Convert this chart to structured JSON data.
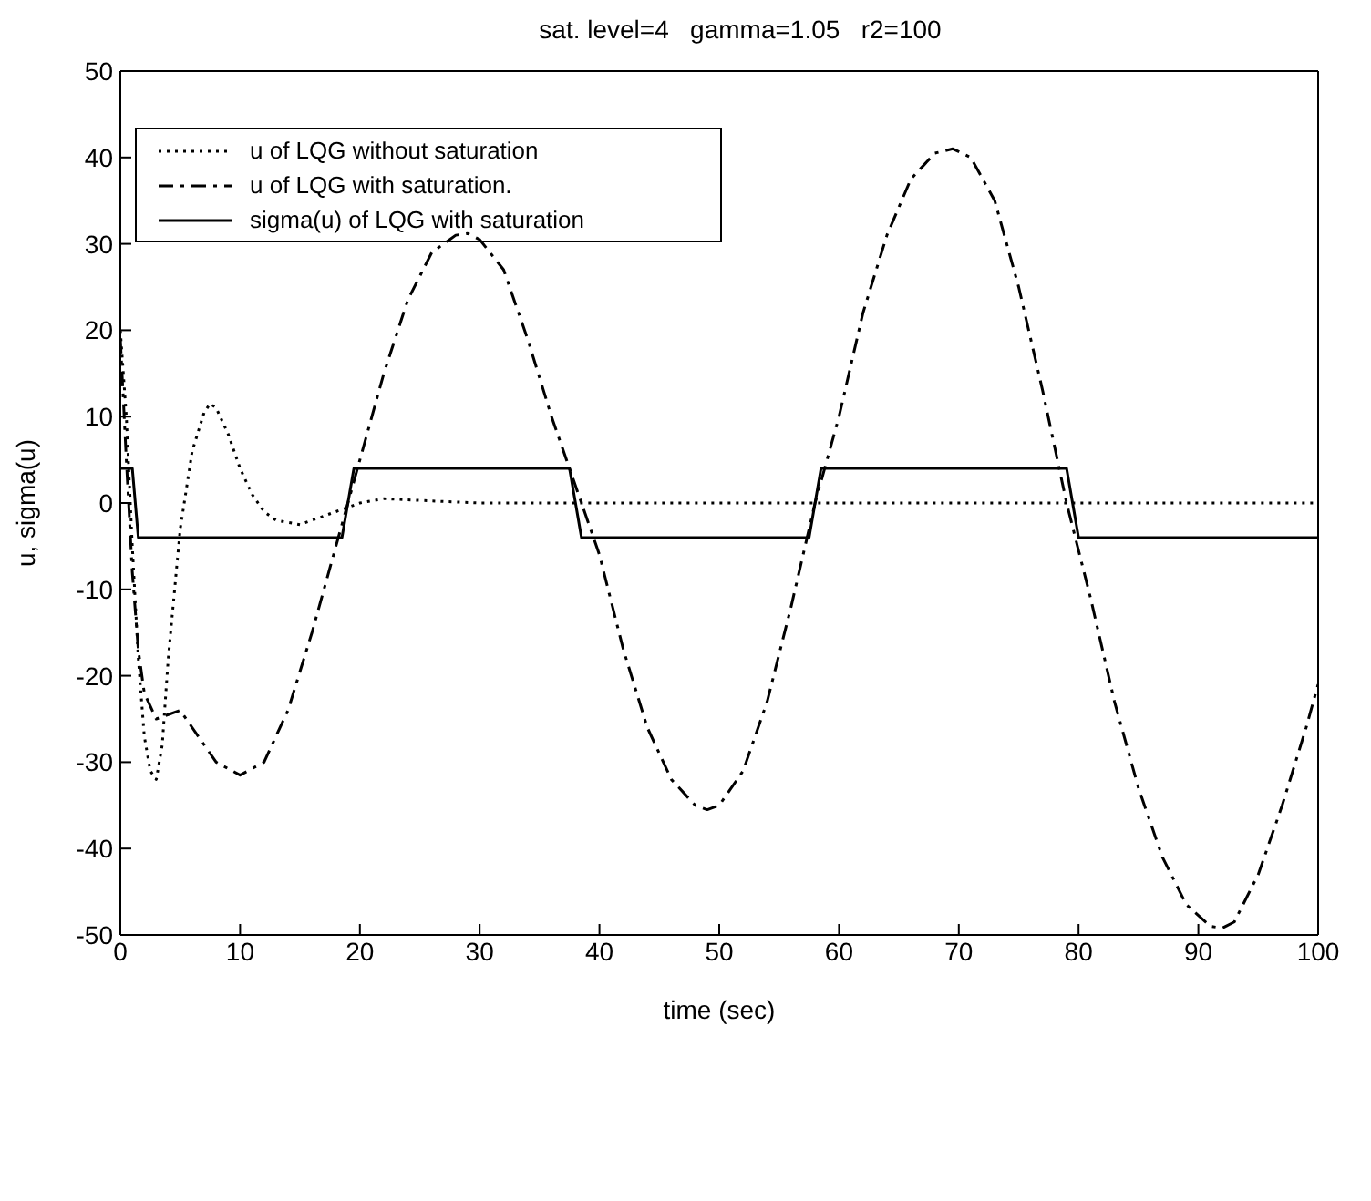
{
  "chart_data": {
    "type": "line",
    "title": "sat. level=4   gamma=1.05   r2=100",
    "xlabel": "time (sec)",
    "ylabel": "u, sigma(u)",
    "xlim": [
      0,
      100
    ],
    "xticks": [
      0,
      10,
      20,
      30,
      40,
      50,
      60,
      70,
      80,
      90,
      100
    ],
    "ylim": [
      -50,
      50
    ],
    "yticks": [
      -50,
      -40,
      -30,
      -20,
      -10,
      0,
      10,
      20,
      30,
      40,
      50
    ],
    "legend": "top left",
    "marker": "none",
    "series": [
      {
        "name": "u of LQG without saturation",
        "color": "#000000",
        "line_style": "dotted",
        "x": [
          0,
          0.5,
          1,
          1.5,
          2,
          2.5,
          3,
          3.5,
          4,
          5,
          6,
          7,
          7.5,
          8,
          9,
          10,
          11,
          12,
          13,
          15,
          17,
          19,
          20,
          22,
          25,
          30,
          100
        ],
        "values": [
          20,
          10,
          -5,
          -18,
          -27,
          -31,
          -32,
          -28,
          -18,
          -3,
          6,
          10.5,
          11.5,
          11,
          8,
          4,
          1,
          -1,
          -2,
          -2.5,
          -1.5,
          -0.5,
          0,
          0.5,
          0.3,
          0,
          0
        ]
      },
      {
        "name": "u of LQG with saturation.",
        "color": "#000000",
        "line_style": "dashed",
        "x": [
          0,
          0.5,
          1,
          1.5,
          2,
          3,
          4,
          5,
          6,
          8,
          10,
          12,
          14,
          16,
          18,
          19,
          20,
          22,
          24,
          26,
          28,
          29,
          30,
          32,
          34,
          36,
          38.5,
          40,
          42,
          44,
          46,
          48,
          49,
          50,
          52,
          54,
          56,
          58,
          60,
          62,
          64,
          66,
          68,
          69.5,
          71,
          73,
          75,
          77,
          79,
          81,
          83,
          85,
          87,
          89,
          91,
          92,
          93,
          95,
          97,
          99,
          100
        ],
        "values": [
          19,
          5,
          -8,
          -17,
          -22,
          -25,
          -24.5,
          -24,
          -26,
          -30,
          -31.5,
          -30,
          -24,
          -15,
          -5,
          0,
          5,
          15,
          23.5,
          29,
          31,
          31.2,
          30.5,
          27,
          19,
          10,
          0,
          -6,
          -17,
          -26,
          -32,
          -35,
          -35.5,
          -35,
          -31,
          -23,
          -12,
          0,
          10,
          22,
          31,
          37.5,
          40.5,
          41,
          40,
          35,
          25,
          13,
          0,
          -11,
          -23,
          -33,
          -41,
          -46.5,
          -49,
          -49.2,
          -48.5,
          -43,
          -35,
          -26,
          -21
        ]
      },
      {
        "name": "sigma(u) of LQG with saturation",
        "color": "#000000",
        "line_style": "solid",
        "x": [
          0,
          1,
          1.5,
          18.5,
          19.5,
          37.5,
          38.5,
          57.5,
          58.5,
          79,
          80,
          100
        ],
        "values": [
          4,
          4,
          -4,
          -4,
          4,
          4,
          -4,
          -4,
          4,
          4,
          -4,
          -4
        ]
      }
    ]
  }
}
